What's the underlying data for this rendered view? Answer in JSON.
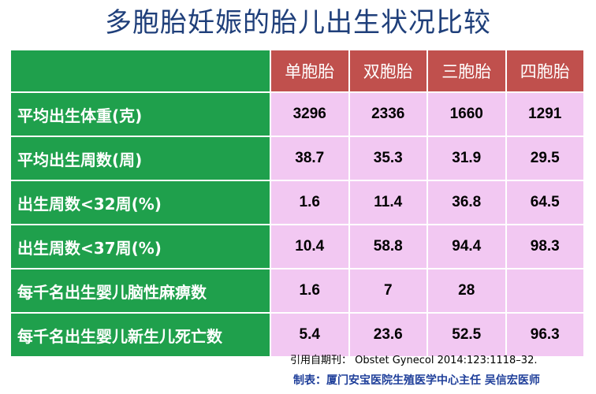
{
  "title": "多胞胎妊娠的胎儿出生状况比较",
  "table": {
    "columns": [
      "单胞胎",
      "双胞胎",
      "三胞胎",
      "四胞胎"
    ],
    "rows": [
      {
        "label": "平均出生体重(克)",
        "values": [
          "3296",
          "2336",
          "1660",
          "1291"
        ]
      },
      {
        "label": "平均出生周数(周)",
        "values": [
          "38.7",
          "35.3",
          "31.9",
          "29.5"
        ]
      },
      {
        "label": "出生周数<32周(%)",
        "values": [
          "1.6",
          "11.4",
          "36.8",
          "64.5"
        ]
      },
      {
        "label": "出生周数<37周(%)",
        "values": [
          "10.4",
          "58.8",
          "94.4",
          "98.3"
        ]
      },
      {
        "label": "每千名出生婴儿脑性麻痹数",
        "values": [
          "1.6",
          "7",
          "28",
          ""
        ]
      },
      {
        "label": "每千名出生婴儿新生儿死亡数",
        "values": [
          "5.4",
          "23.6",
          "52.5",
          "96.3"
        ]
      }
    ]
  },
  "footer": {
    "source": "引用自期刊：  Obstet Gynecol 2014:123:1118–32.",
    "maker": "制表：厦门安宝医院生殖医学中心主任 吴信宏医师"
  },
  "colors": {
    "title": "#1f3f7a",
    "row_header_bg": "#1fa04c",
    "column_header_bg": "#c0504d",
    "cell_bg": "#f2c8f2",
    "maker_text": "#1f3f9a"
  }
}
